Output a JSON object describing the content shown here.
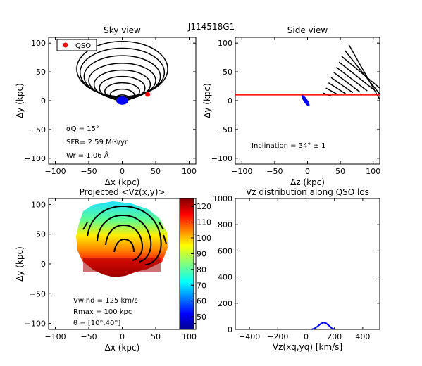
{
  "figure": {
    "id_label": "J114518G1"
  },
  "panels": {
    "sky": {
      "title": "Sky view",
      "xlabel": "Δx (kpc)",
      "ylabel": "Δy (kpc)",
      "legend_label": "QSO",
      "ann_alpha": "αQ =  15°",
      "ann_sfr": "SFR= 2.59 M☉/yr",
      "ann_wr": "Wr = 1.06 Å"
    },
    "side": {
      "title": "Side view",
      "xlabel": "Δz (kpc)",
      "ylabel": "Δy (kpc)",
      "ann_incl": "Inclination =  34°  ±  1"
    },
    "proj": {
      "title": "Projected  <Vz(x,y)>",
      "xlabel": "Δx (kpc)",
      "ylabel": "Δy (kpc)",
      "ann_vwind": "Vwind = 125 km/s",
      "ann_rmax": "Rmax = 100 kpc",
      "ann_theta": "θ = [10°,40°]"
    },
    "vz": {
      "title": "Vz distribution along QSO los",
      "xlabel": "Vz(xq,yq) [km/s]"
    }
  },
  "colors": {
    "qso": "#ff0000",
    "sightline": "#ff0000",
    "galaxy": "#0000ff",
    "curve": "#0000ff",
    "contour": "#000000"
  },
  "chart_data": [
    {
      "type": "scatter",
      "title": "Sky view",
      "xlabel": "Δx (kpc)",
      "ylabel": "Δy (kpc)",
      "xlim": [
        -110,
        110
      ],
      "ylim": [
        -110,
        110
      ],
      "xticks": [
        "−100",
        "−50",
        "0",
        "50",
        "100"
      ],
      "yticks": [
        "100",
        "50",
        "0",
        "−50",
        "−100"
      ],
      "legend": "top-left",
      "series": [
        {
          "name": "QSO",
          "points": [
            [
              38,
              11
            ]
          ]
        }
      ],
      "galaxy_center": [
        0,
        0
      ],
      "cone_ellipses": [
        {
          "x": 0,
          "y": 4,
          "a": 10,
          "b": 6
        },
        {
          "x": 0,
          "y": 10,
          "a": 18,
          "b": 10
        },
        {
          "x": 0,
          "y": 16,
          "a": 26,
          "b": 15
        },
        {
          "x": 0,
          "y": 22,
          "a": 34,
          "b": 20
        },
        {
          "x": 0,
          "y": 28,
          "a": 42,
          "b": 25
        },
        {
          "x": 0,
          "y": 35,
          "a": 50,
          "b": 30
        },
        {
          "x": 0,
          "y": 42,
          "a": 57,
          "b": 36
        },
        {
          "x": 0,
          "y": 49,
          "a": 63,
          "b": 42
        },
        {
          "x": 0,
          "y": 55,
          "a": 68,
          "b": 48
        }
      ]
    },
    {
      "type": "line",
      "title": "Side view",
      "xlabel": "Δz (kpc)",
      "ylabel": "Δy (kpc)",
      "xlim": [
        -110,
        110
      ],
      "ylim": [
        -110,
        110
      ],
      "xticks": [
        "−100",
        "−50",
        "0",
        "50",
        "100"
      ],
      "yticks": [
        "100",
        "50",
        "0",
        "−50",
        "−100"
      ],
      "sightline_y": 10,
      "disk": {
        "x": -3,
        "y": 0,
        "a": 10,
        "b": 3.5,
        "angle": 56
      },
      "cone_lines": [
        [
          [
            24,
            13
          ],
          [
            36,
            8
          ]
        ],
        [
          [
            28,
            22
          ],
          [
            47,
            10
          ]
        ],
        [
          [
            32,
            31
          ],
          [
            58,
            12
          ]
        ],
        [
          [
            36,
            40
          ],
          [
            69,
            14
          ]
        ],
        [
          [
            40,
            49
          ],
          [
            80,
            15
          ]
        ],
        [
          [
            44,
            58
          ],
          [
            91,
            17
          ]
        ],
        [
          [
            48,
            67
          ],
          [
            101,
            19
          ]
        ],
        [
          [
            52,
            77
          ],
          [
            111,
            21
          ]
        ],
        [
          [
            57,
            87
          ],
          [
            111,
            10
          ]
        ],
        [
          [
            63,
            97
          ],
          [
            111,
            0
          ]
        ]
      ]
    },
    {
      "type": "heatmap",
      "title": "Projected  <Vz(x,y)>",
      "xlabel": "Δx (kpc)",
      "ylabel": "Δy (kpc)",
      "xlim": [
        -110,
        110
      ],
      "ylim": [
        -110,
        110
      ],
      "xticks": [
        "−100",
        "−50",
        "0",
        "50",
        "100"
      ],
      "yticks": [
        "100",
        "50",
        "0",
        "−50",
        "−100"
      ],
      "colorbar": {
        "range": [
          42,
          125
        ],
        "ticks": [
          "120",
          "110",
          "100",
          "90",
          "80",
          "70",
          "60",
          "50"
        ],
        "tick_values": [
          120,
          110,
          100,
          90,
          80,
          70,
          60,
          50
        ]
      },
      "map_extent": {
        "x": [
          -70,
          72
        ],
        "y": [
          -30,
          105
        ]
      }
    },
    {
      "type": "line",
      "title": "Vz distribution along QSO los",
      "xlabel": "Vz(xq,yq) [km/s]",
      "xlim": [
        -500,
        520
      ],
      "ylim": [
        0,
        1000
      ],
      "xticks": [
        "−400",
        "−200",
        "0",
        "200",
        "400"
      ],
      "yticks": [
        "1000",
        "800",
        "600",
        "400",
        "200",
        "0"
      ],
      "series": [
        {
          "x": [
            40,
            60,
            80,
            100,
            120,
            140,
            160,
            180,
            200
          ],
          "y": [
            0,
            8,
            22,
            40,
            52,
            48,
            30,
            10,
            0
          ]
        }
      ]
    }
  ]
}
